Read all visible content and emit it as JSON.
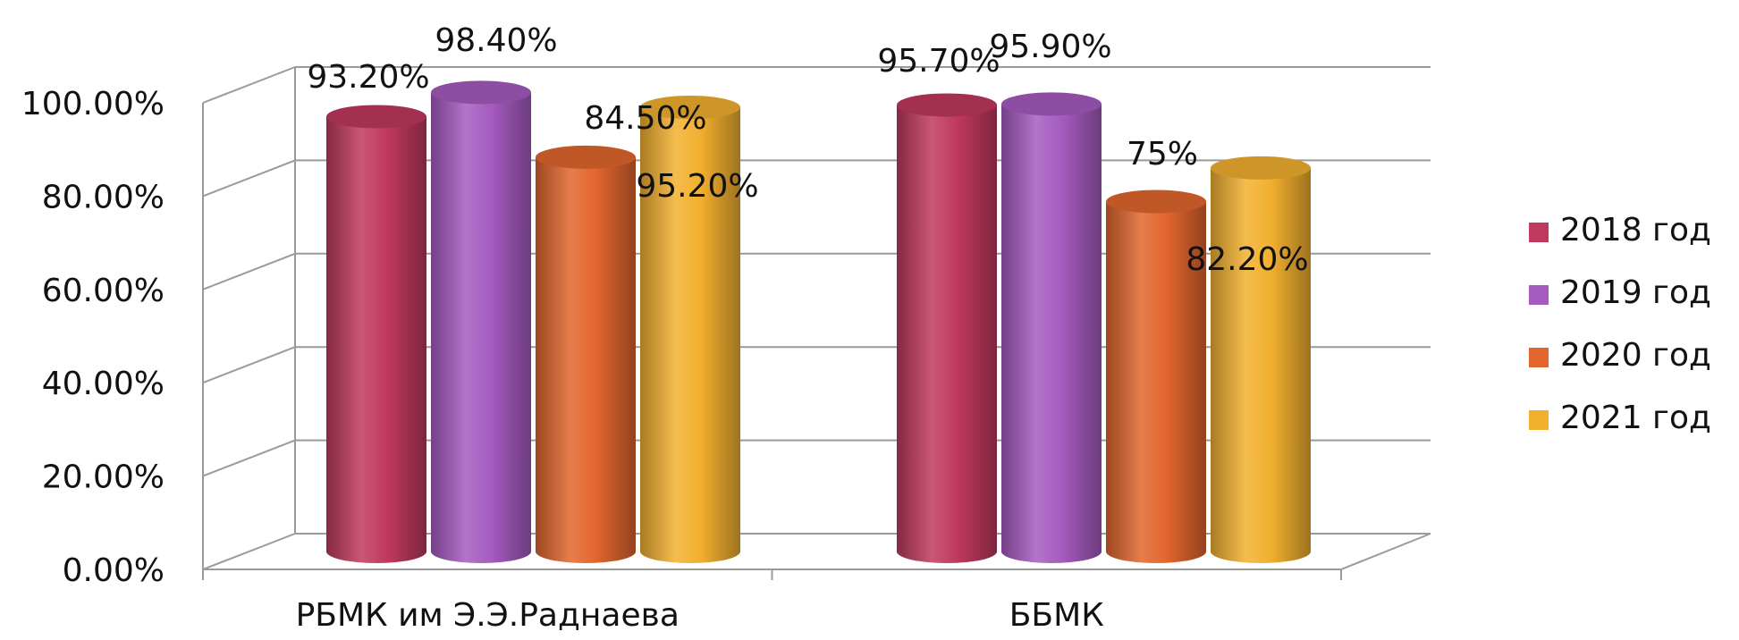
{
  "chart_data": {
    "type": "bar",
    "style": "3d-cylinder",
    "title": "",
    "xlabel": "",
    "ylabel": "",
    "ylim": [
      0,
      100
    ],
    "y_ticks": [
      {
        "value": 0,
        "label": "0.00%"
      },
      {
        "value": 20,
        "label": "20.00%"
      },
      {
        "value": 40,
        "label": "40.00%"
      },
      {
        "value": 60,
        "label": "60.00%"
      },
      {
        "value": 80,
        "label": "80.00%"
      },
      {
        "value": 100,
        "label": "100.00%"
      }
    ],
    "categories": [
      "РБМК им Э.Э.Раднаева",
      "ББМК"
    ],
    "series": [
      {
        "name": "2018 год",
        "color": "#C0395E",
        "values": [
          93.2,
          95.7
        ],
        "labels": [
          "93.20%",
          "95.70%"
        ]
      },
      {
        "name": "2019 год",
        "color": "#A65BC0",
        "values": [
          98.4,
          95.9
        ],
        "labels": [
          "98.40%",
          "95.90%"
        ]
      },
      {
        "name": "2020 год",
        "color": "#E2662E",
        "values": [
          84.5,
          75.0
        ],
        "labels": [
          "84.50%",
          "75%"
        ]
      },
      {
        "name": "2021 год",
        "color": "#F2B02F",
        "values": [
          95.2,
          82.2
        ],
        "labels": [
          "95.20%",
          "82.20%"
        ]
      }
    ],
    "grid": true,
    "legend": "right"
  }
}
